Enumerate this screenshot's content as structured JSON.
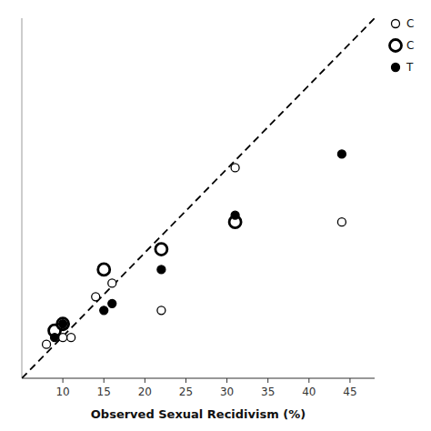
{
  "chart_data": {
    "type": "scatter",
    "xlabel": "Observed Sexual Recidivism (%)",
    "xlim": [
      5,
      48
    ],
    "ylim": [
      5,
      58
    ],
    "xticks": [
      10,
      15,
      20,
      25,
      30,
      35,
      40,
      45
    ],
    "tick_labels": "x",
    "legend": "upper right",
    "series": [
      {
        "type": "line",
        "line_style": "dashed",
        "color": "#000000",
        "x": [
          5,
          48
        ],
        "values": [
          5,
          58
        ]
      },
      {
        "name": "C",
        "marker": "open-circle",
        "color": "#000000",
        "x": [
          8,
          10,
          11,
          14,
          16,
          22,
          31,
          44
        ],
        "values": [
          10,
          11,
          11,
          17,
          19,
          15,
          36,
          28
        ]
      },
      {
        "name": "C",
        "marker": "bold-open-circle",
        "color": "#000000",
        "x": [
          9,
          10,
          15,
          22,
          31
        ],
        "values": [
          12,
          13,
          21,
          24,
          28
        ]
      },
      {
        "name": "T",
        "marker": "filled-circle",
        "color": "#000000",
        "x": [
          9,
          10,
          15,
          16,
          22,
          31,
          44
        ],
        "values": [
          11,
          13,
          15,
          16,
          21,
          29,
          38
        ]
      }
    ]
  }
}
